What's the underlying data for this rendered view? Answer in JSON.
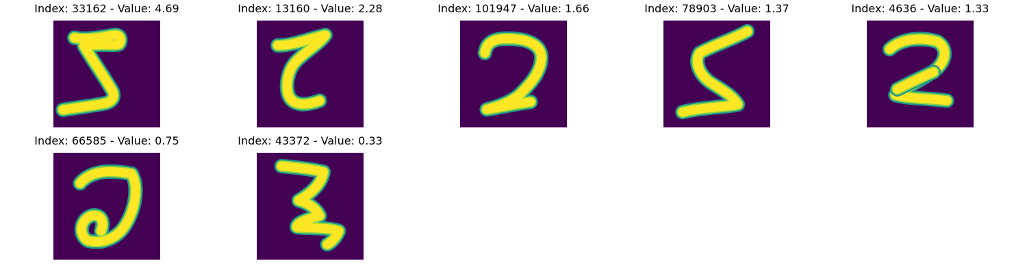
{
  "panels": [
    {
      "index": "33162",
      "value": "4.69",
      "title": "Index: 33162 - Value: 4.69",
      "glyph": "sigma-s"
    },
    {
      "index": "13160",
      "value": "2.28",
      "title": "Index: 13160 - Value: 2.28",
      "glyph": "reversed-z"
    },
    {
      "index": "101947",
      "value": "1.66",
      "title": "Index: 101947 - Value: 1.66",
      "glyph": "two"
    },
    {
      "index": "78903",
      "value": "1.37",
      "title": "Index: 78903 - Value: 1.37",
      "glyph": "s-shape"
    },
    {
      "index": "4636",
      "value": "1.33",
      "title": "Index: 4636 - Value: 1.33",
      "glyph": "bold-two"
    },
    {
      "index": "66585",
      "value": "0.75",
      "title": "Index: 66585 - Value: 0.75",
      "glyph": "loop-two"
    },
    {
      "index": "43372",
      "value": "0.33",
      "title": "Index: 43372 - Value: 0.33",
      "glyph": "z-shape"
    }
  ],
  "colors": {
    "background": "#440154",
    "stroke_core": "#fde725",
    "stroke_mid": "#8fd744",
    "stroke_edge": "#21918c"
  }
}
